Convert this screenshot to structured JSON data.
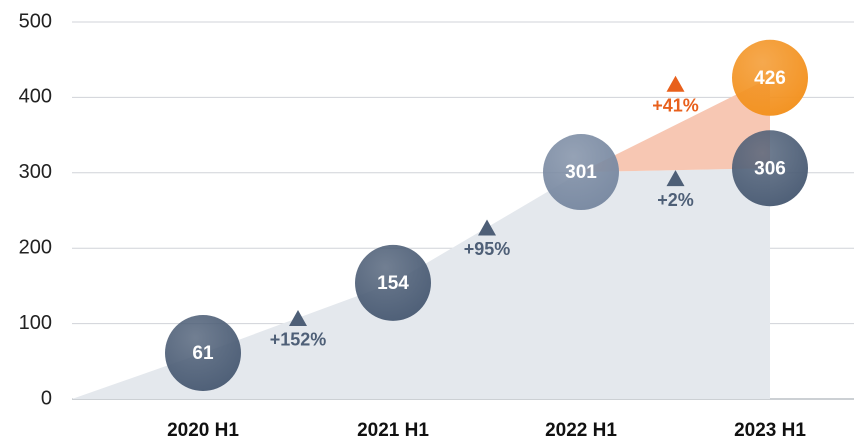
{
  "chart_data": {
    "type": "bubble-line",
    "categories": [
      "2020 H1",
      "2021 H1",
      "2022 H1",
      "2023 H1"
    ],
    "series": [
      {
        "color": "#4e5f77",
        "point_colors": [
          "#4e5f77",
          "#4e5f77",
          "#7b8ba3",
          "#4e5f77"
        ],
        "area_color": "#e4e8ed",
        "values": [
          61,
          154,
          301,
          306
        ],
        "growth_labels": [
          "+152%",
          "+95%",
          "+2%"
        ]
      },
      {
        "color": "#f39322",
        "area_color": "#f7c7b3",
        "label_color": "#e8601c",
        "values": [
          null,
          null,
          null,
          426
        ],
        "growth_labels": [
          null,
          null,
          "+41%"
        ]
      }
    ],
    "ylim": [
      0,
      500
    ],
    "yticks": [
      0,
      100,
      200,
      300,
      400,
      500
    ],
    "grid": true
  }
}
